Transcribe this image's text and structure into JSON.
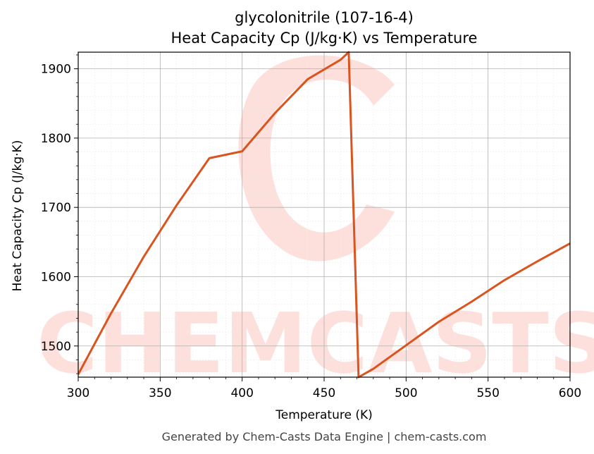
{
  "chart_data": {
    "type": "line",
    "title": "glycolonitrile (107-16-4)",
    "subtitle": "Heat Capacity Cp (J/kg·K) vs Temperature",
    "xlabel": "Temperature (K)",
    "ylabel": "Heat Capacity Cp (J/kg·K)",
    "xlim": [
      300,
      600
    ],
    "ylim": [
      1455,
      1924
    ],
    "x_ticks": [
      "300",
      "350",
      "400",
      "450",
      "500",
      "550",
      "600"
    ],
    "y_ticks": [
      "1500",
      "1600",
      "1700",
      "1800",
      "1900"
    ],
    "grid": true,
    "legend": "none",
    "series": [
      {
        "color": "#d9541e",
        "x": [
          300,
          320,
          340,
          360,
          380,
          400,
          420,
          440,
          460,
          465,
          471,
          480,
          500,
          520,
          540,
          560,
          580,
          600
        ],
        "y": [
          1459,
          1547,
          1629,
          1703,
          1771,
          1781,
          1836,
          1885,
          1913,
          1924,
          1455,
          1467,
          1501,
          1535,
          1564,
          1595,
          1622,
          1648
        ]
      }
    ]
  },
  "watermark": {
    "text": "CHEMCASTS",
    "color": "#fde0dc"
  },
  "footer": "Generated by Chem-Casts Data Engine | chem-casts.com"
}
